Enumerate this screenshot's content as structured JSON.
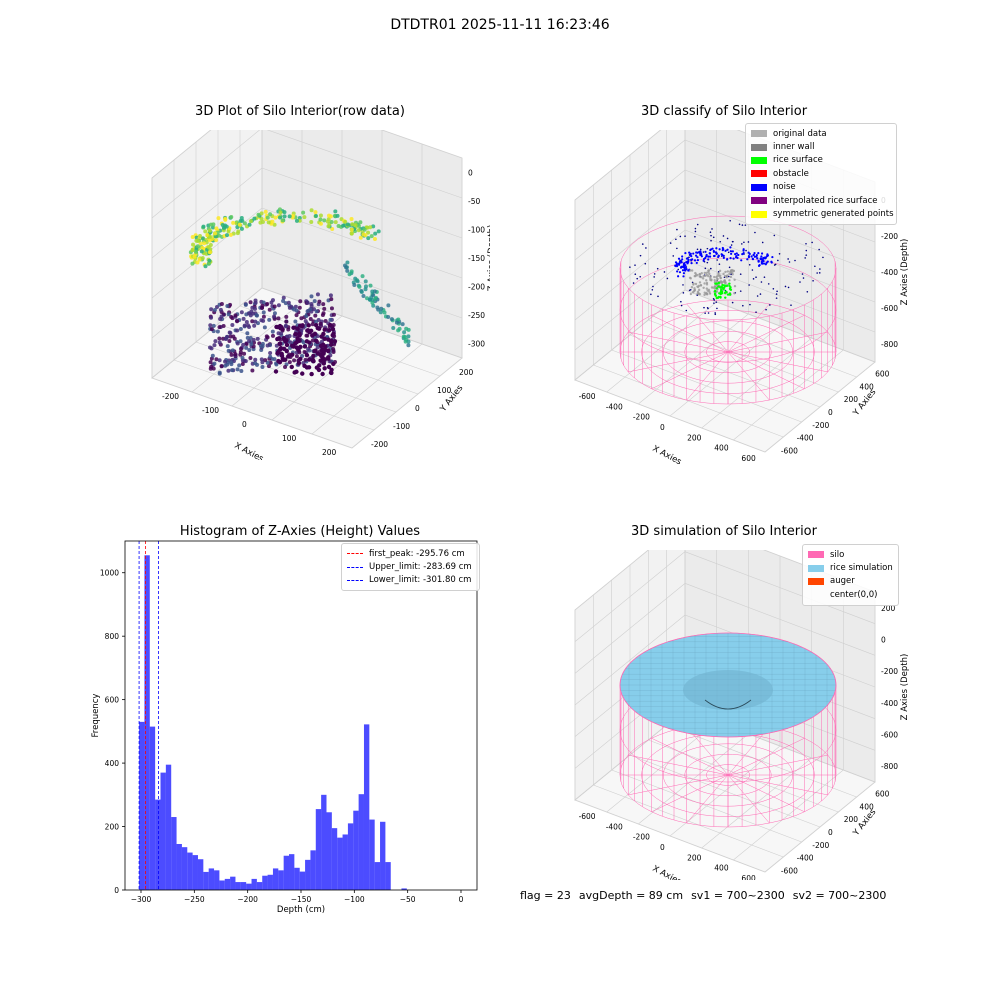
{
  "suptitle": "DTDTR01 2025-11-11 16:23:46",
  "panels": {
    "raw": {
      "title": "3D Plot of Silo Interior(row data)",
      "xlabel": "X Axies",
      "ylabel": "Y Axies",
      "zlabel": "Z Axies (Depth)",
      "xticks": [
        "-200",
        "-100",
        "0",
        "100",
        "200"
      ],
      "yticks": [
        "-200",
        "-100",
        "0",
        "100",
        "200"
      ],
      "zticks": [
        "0",
        "-50",
        "-100",
        "-150",
        "-200",
        "-250",
        "-300"
      ]
    },
    "classify": {
      "title": "3D classify of Silo Interior",
      "xlabel": "X Axies",
      "ylabel": "Y Axies",
      "zlabel": "Z Axies (Depth)",
      "xticks": [
        "-600",
        "-400",
        "-200",
        "0",
        "200",
        "400",
        "600"
      ],
      "yticks": [
        "-600",
        "-400",
        "-200",
        "0",
        "200",
        "400",
        "600"
      ],
      "zticks": [
        "0",
        "-200",
        "-400",
        "-600",
        "-800"
      ],
      "legend": [
        {
          "label": "original data",
          "color": "#b0b0b0"
        },
        {
          "label": "inner wall",
          "color": "#808080"
        },
        {
          "label": "rice surface",
          "color": "#00ff00"
        },
        {
          "label": "obstacle",
          "color": "#ff0000"
        },
        {
          "label": "noise",
          "color": "#0000ff"
        },
        {
          "label": "interpolated rice surface",
          "color": "#800080"
        },
        {
          "label": "symmetric generated points",
          "color": "#ffff00"
        }
      ]
    },
    "simulation": {
      "title": "3D simulation of Silo Interior",
      "xlabel": "X Axies",
      "ylabel": "Y Axies",
      "zlabel": "Z Axies (Depth)",
      "xticks": [
        "-600",
        "-400",
        "-200",
        "0",
        "200",
        "400",
        "600"
      ],
      "yticks": [
        "-600",
        "-400",
        "-200",
        "0",
        "200",
        "400",
        "600"
      ],
      "zticks": [
        "200",
        "0",
        "-200",
        "-400",
        "-600",
        "-800"
      ],
      "legend": [
        {
          "label": "silo",
          "color": "#ff69b4"
        },
        {
          "label": "rice simulation",
          "color": "#87ceeb"
        },
        {
          "label": "auger",
          "color": "#ff4500"
        },
        {
          "label": "center(0,0)",
          "color": ""
        }
      ]
    }
  },
  "chart_data": {
    "type": "bar",
    "title": "Histogram of Z-Axies (Height) Values",
    "xlabel": "Depth (cm)",
    "ylabel": "Frequency",
    "xlim": [
      -315,
      15
    ],
    "ylim": [
      0,
      1100
    ],
    "xticks": [
      -300,
      -250,
      -200,
      -150,
      -100,
      -50,
      0
    ],
    "yticks": [
      0,
      200,
      400,
      600,
      800,
      1000
    ],
    "bin_start": -301.8,
    "bin_width": 5.02,
    "values": [
      530,
      1055,
      515,
      285,
      370,
      395,
      230,
      145,
      135,
      118,
      110,
      97,
      57,
      68,
      62,
      30,
      35,
      42,
      25,
      25,
      20,
      35,
      25,
      45,
      48,
      68,
      62,
      108,
      113,
      70,
      58,
      95,
      125,
      255,
      300,
      245,
      195,
      165,
      175,
      210,
      250,
      302,
      522,
      222,
      88,
      215,
      88,
      0,
      0,
      5
    ],
    "color": "#0000ff",
    "vlines": [
      {
        "label": "first_peak: -295.76 cm",
        "x": -295.76,
        "color": "#ff0000"
      },
      {
        "label": "Upper_limit: -283.69 cm",
        "x": -283.69,
        "color": "#0000ff"
      },
      {
        "label": "Lower_limit: -301.80 cm",
        "x": -301.8,
        "color": "#0000ff"
      }
    ],
    "legend_position": "upper right"
  },
  "footer": {
    "flag": "flag = 23",
    "avg_depth": "avgDepth = 89 cm",
    "sv1": "sv1 = 700~2300",
    "sv2": "sv2 = 700~2300"
  }
}
